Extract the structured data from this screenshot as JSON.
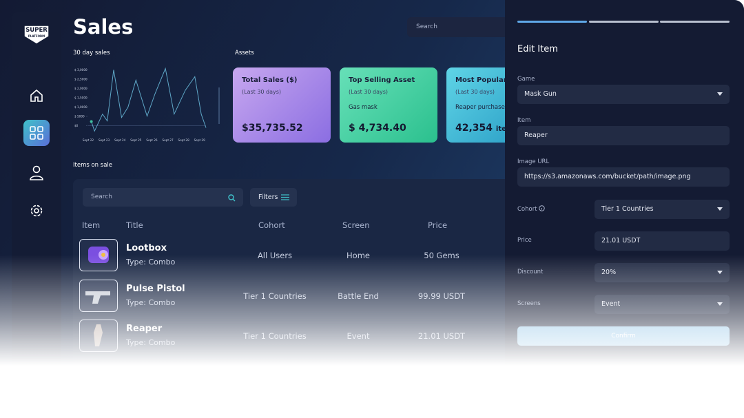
{
  "sidebar": {
    "logo": [
      "SUPER",
      "PLATFORM"
    ]
  },
  "header": {
    "title": "Sales",
    "search": "Search"
  },
  "chart_data": {
    "type": "line",
    "title": "30 day sales",
    "x": [
      0.2,
      0.4,
      0.9,
      1.2,
      1.6,
      2.1,
      2.5,
      3.0,
      3.7,
      4.2,
      4.85,
      5.4,
      6.1,
      6.7,
      7.1,
      7.4
    ],
    "values": [
      2200,
      -2900,
      6200,
      2600,
      30000,
      4400,
      9900,
      24500,
      5100,
      17200,
      30700,
      6200,
      19000,
      26300,
      6200,
      -1100
    ],
    "color": "#5fa8c8",
    "xlim": [
      0,
      7.4
    ],
    "xticks": [
      {
        "value": 0,
        "label": "Sept 22"
      },
      {
        "value": 1,
        "label": "Sept 23"
      },
      {
        "value": 2,
        "label": "Sept 24"
      },
      {
        "value": 3,
        "label": "Sept 25"
      },
      {
        "value": 4,
        "label": "Sept 26"
      },
      {
        "value": 5,
        "label": "Sept 27"
      },
      {
        "value": 6,
        "label": "Sept 28"
      },
      {
        "value": 7,
        "label": "Sept 29"
      }
    ],
    "ylim": [
      -5000,
      32000
    ],
    "yticks": [
      {
        "value": 0,
        "label": "$0"
      },
      {
        "value": 5000,
        "label": "$ 5000"
      },
      {
        "value": 10000,
        "label": "$ 1,0000"
      },
      {
        "value": 15000,
        "label": "$ 1,5000"
      },
      {
        "value": 20000,
        "label": "$ 2,0000"
      },
      {
        "value": 25000,
        "label": "$ 2,5000"
      },
      {
        "value": 30000,
        "label": "$ 3,0000"
      }
    ]
  },
  "assets": {
    "title": "Assets",
    "cards": [
      {
        "title": "Total Sales ($)",
        "subtitle": "(Last 30 days)",
        "value": "$35,735.52"
      },
      {
        "title": "Top Selling Asset",
        "subtitle": "(Last 30 days)",
        "detail": "Gas mask",
        "value": "$ 4,734.40"
      },
      {
        "title": "Most Popular It",
        "subtitle": "(Last 30 days)",
        "detail": "Reaper purchased",
        "value": "42,354",
        "unit": "item"
      }
    ]
  },
  "items": {
    "title": "Items on sale",
    "search": "Search",
    "filters": "Filters",
    "columns": [
      "Item",
      "Title",
      "Cohort",
      "Screen",
      "Price"
    ],
    "rows": [
      {
        "title": "Lootbox",
        "type": "Type: Combo",
        "cohort": "All Users",
        "screen": "Home",
        "price": "50 Gems"
      },
      {
        "title": "Pulse Pistol",
        "type": "Type: Combo",
        "cohort": "Tier 1 Countries",
        "screen": "Battle End",
        "price": "99.99 USDT"
      },
      {
        "title": "Reaper",
        "type": "Type: Combo",
        "cohort": "Tier 1 Countries",
        "screen": "Event",
        "price": "21.01 USDT"
      }
    ]
  },
  "edit_panel": {
    "title": "Edit Item",
    "game": {
      "label": "Game",
      "value": "Mask Gun"
    },
    "item": {
      "label": "Item",
      "value": "Reaper"
    },
    "image_url": {
      "label": "Image URL",
      "value": "https://s3.amazonaws.com/bucket/path/image.png"
    },
    "cohort": {
      "label": "Cohort",
      "value": "Tier 1 Countries"
    },
    "price": {
      "label": "Price",
      "value": "21.01 USDT"
    },
    "discount": {
      "label": "Discount",
      "value": "20%"
    },
    "screens": {
      "label": "Screens",
      "value": "Event"
    },
    "confirm": "Confirm"
  }
}
